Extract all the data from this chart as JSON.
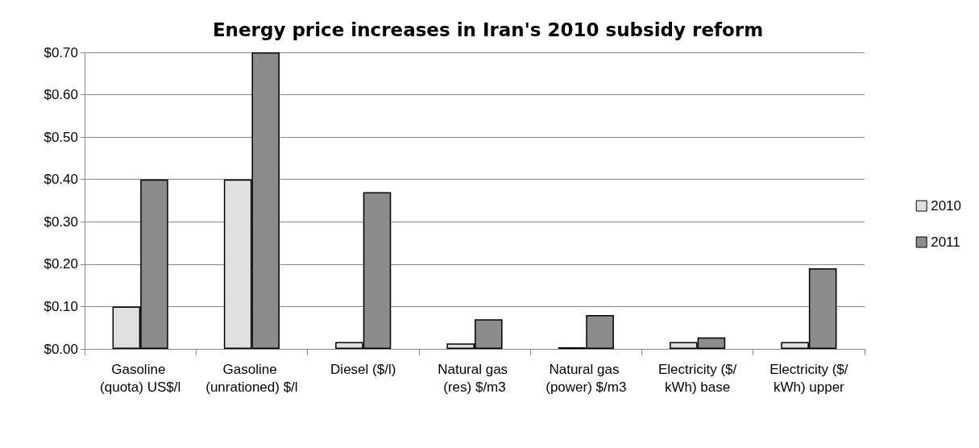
{
  "chart_data": {
    "type": "bar",
    "title": "Energy price increases in Iran's 2010 subsidy reform",
    "categories": [
      "Gasoline (quota) US$/l",
      "Gasoline (unrationed) $/l",
      "Diesel ($/l)",
      "Natural gas (res) $/m3",
      "Natural gas (power) $/m3",
      "Electricity ($/kWh) base",
      "Electricity ($/kWh) upper"
    ],
    "series": [
      {
        "name": "2010",
        "color": "#e0e0e0",
        "values": [
          0.1,
          0.4,
          0.016,
          0.013,
          0.004,
          0.016,
          0.016
        ]
      },
      {
        "name": "2011",
        "color": "#8c8c8c",
        "values": [
          0.4,
          0.7,
          0.37,
          0.07,
          0.08,
          0.027,
          0.19
        ]
      }
    ],
    "ylim": [
      0,
      0.7
    ],
    "yticks": [
      {
        "value": 0,
        "label": "$0.00"
      },
      {
        "value": 0.1,
        "label": "$0.10"
      },
      {
        "value": 0.2,
        "label": "$0.20"
      },
      {
        "value": 0.3,
        "label": "$0.30"
      },
      {
        "value": 0.4,
        "label": "$0.40"
      },
      {
        "value": 0.5,
        "label": "$0.50"
      },
      {
        "value": 0.6,
        "label": "$0.60"
      },
      {
        "value": 0.7,
        "label": "$0.70"
      }
    ],
    "grid": "y",
    "legend": "right"
  }
}
